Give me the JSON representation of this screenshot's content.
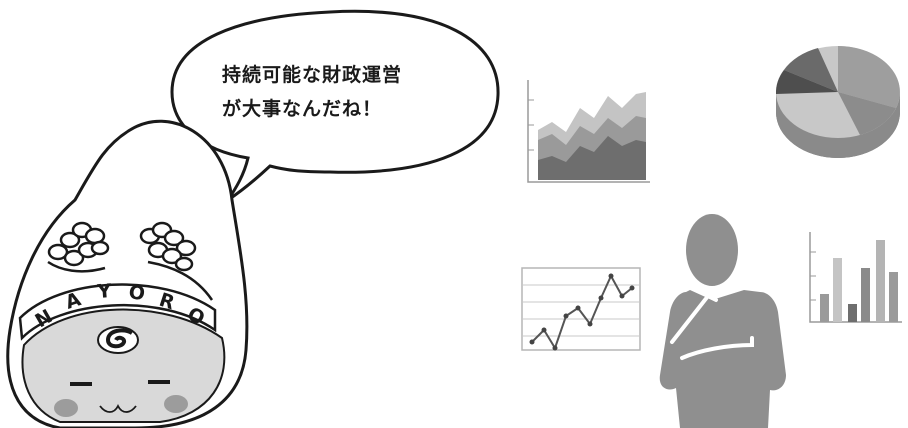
{
  "speech_bubble": {
    "line1": "持続可能な財政運営",
    "line2": "が大事なんだね！"
  },
  "mascot": {
    "headband_text": "NAYORO"
  },
  "colors": {
    "outline": "#1a1a1a",
    "chart_dark": "#6e6e6e",
    "chart_mid": "#9a9a9a",
    "chart_light": "#c4c4c4",
    "person": "#8f8f8f"
  }
}
